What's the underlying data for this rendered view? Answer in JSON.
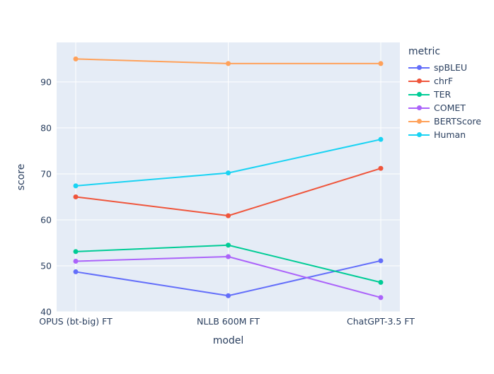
{
  "chart_data": {
    "type": "line",
    "title": "",
    "xlabel": "model",
    "ylabel": "score",
    "legend_title": "metric",
    "categories": [
      "OPUS (bt-big) FT",
      "NLLB 600M FT",
      "ChatGPT-3.5 FT"
    ],
    "series": [
      {
        "name": "spBLEU",
        "color": "#636EFA",
        "values": [
          48.7,
          43.5,
          51.1
        ]
      },
      {
        "name": "chrF",
        "color": "#EF553B",
        "values": [
          65.0,
          60.9,
          71.2
        ]
      },
      {
        "name": "TER",
        "color": "#00CC96",
        "values": [
          53.1,
          54.5,
          46.4
        ]
      },
      {
        "name": "COMET",
        "color": "#AB63FA",
        "values": [
          51.0,
          52.0,
          43.1
        ]
      },
      {
        "name": "BERTScore",
        "color": "#FFA15A",
        "values": [
          95.0,
          94.0,
          94.0
        ]
      },
      {
        "name": "Human",
        "color": "#19D3F3",
        "values": [
          67.4,
          70.2,
          77.5
        ]
      }
    ],
    "y_ticks": [
      40,
      50,
      60,
      70,
      80,
      90
    ],
    "ylim": [
      40,
      98.6
    ],
    "grid": true,
    "legend_position": "right",
    "colors": {
      "plot_bg": "#E5ECF6",
      "grid": "#FFFFFF",
      "text": "#2A3F5F"
    }
  }
}
